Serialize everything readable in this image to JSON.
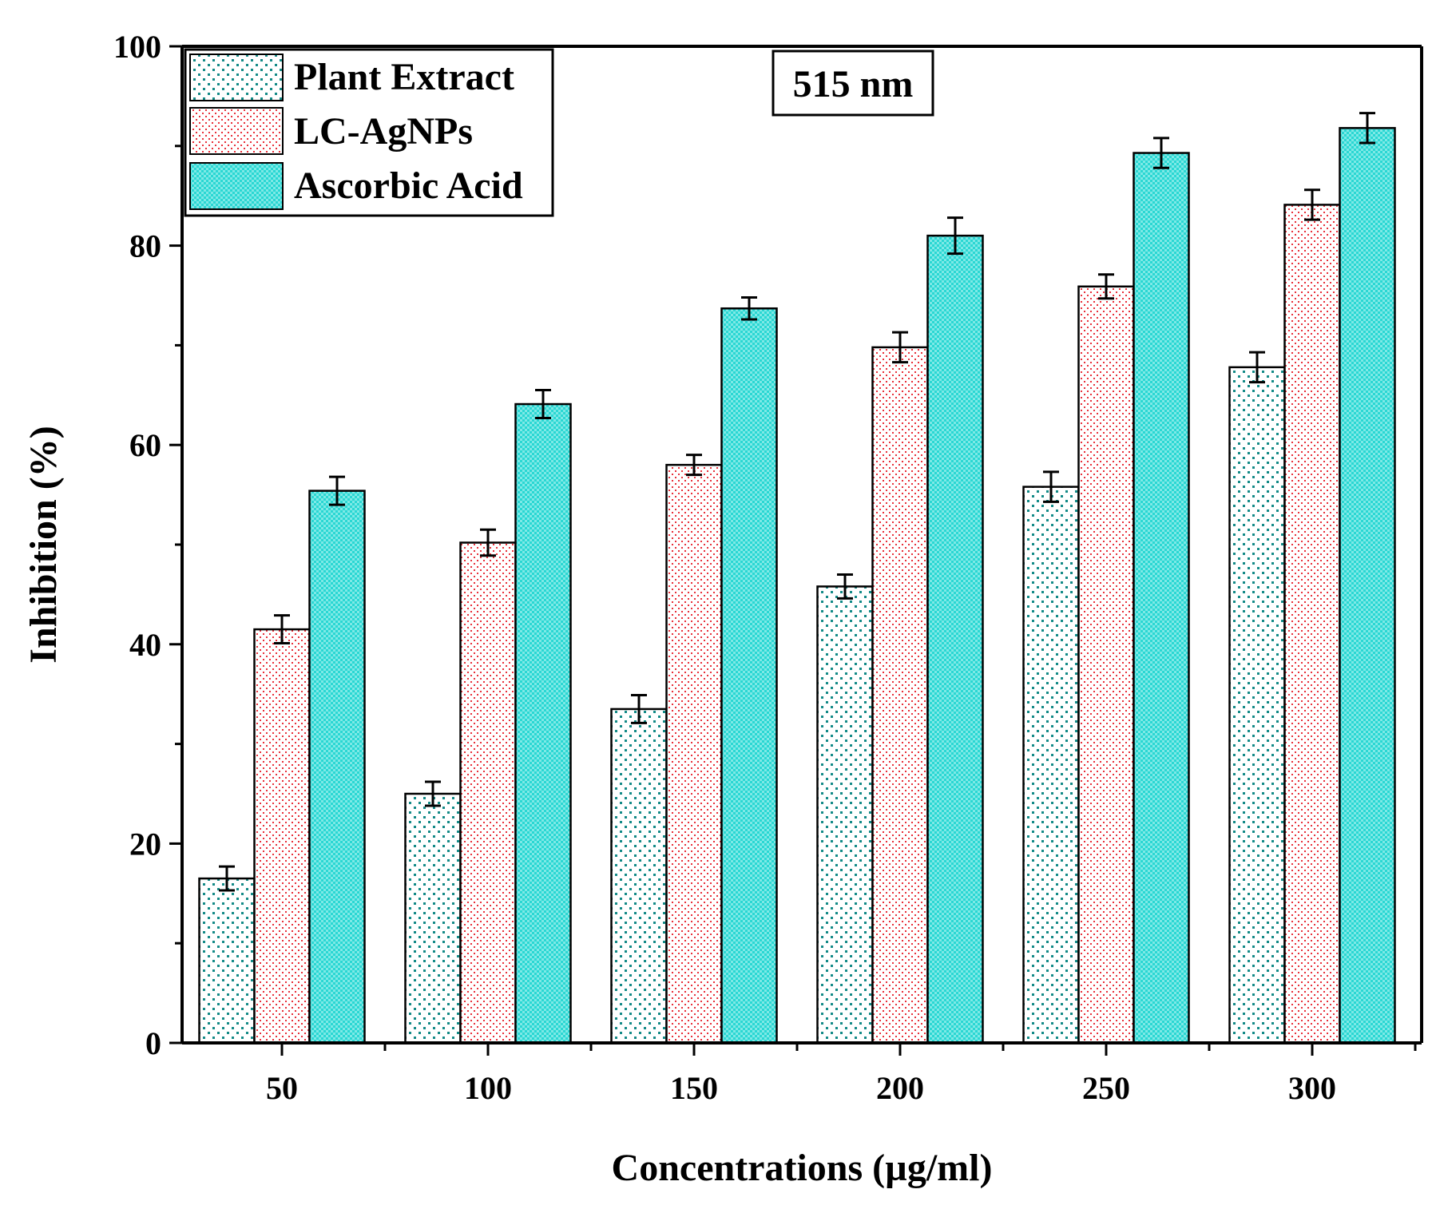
{
  "chart_data": {
    "type": "bar",
    "title": "",
    "annotation": "515 nm",
    "xlabel": "Concentrations (µg/ml)",
    "ylabel": "Inhibition (%)",
    "categories": [
      "50",
      "100",
      "150",
      "200",
      "250",
      "300"
    ],
    "ylim": [
      0,
      100
    ],
    "yticks": [
      "0",
      "20",
      "40",
      "60",
      "80",
      "100"
    ],
    "legend_position": "top-left",
    "series": [
      {
        "name": "Plant Extract",
        "color": "#ffffff",
        "pattern_color": "#138a87",
        "values": [
          16.5,
          25.0,
          33.5,
          45.8,
          55.8,
          67.8
        ],
        "errors": [
          1.2,
          1.2,
          1.4,
          1.2,
          1.5,
          1.5
        ]
      },
      {
        "name": "LC-AgNPs",
        "color": "#ffffff",
        "pattern_color": "#e8303a",
        "values": [
          41.5,
          50.2,
          58.0,
          69.8,
          75.9,
          84.1
        ],
        "errors": [
          1.4,
          1.3,
          1.0,
          1.5,
          1.2,
          1.5
        ]
      },
      {
        "name": "Ascorbic Acid",
        "color": "#2ad7d3",
        "pattern_color": "#1a9e9b",
        "values": [
          55.4,
          64.1,
          73.7,
          81.0,
          89.3,
          91.8
        ],
        "errors": [
          1.4,
          1.4,
          1.1,
          1.8,
          1.5,
          1.5
        ]
      }
    ]
  }
}
